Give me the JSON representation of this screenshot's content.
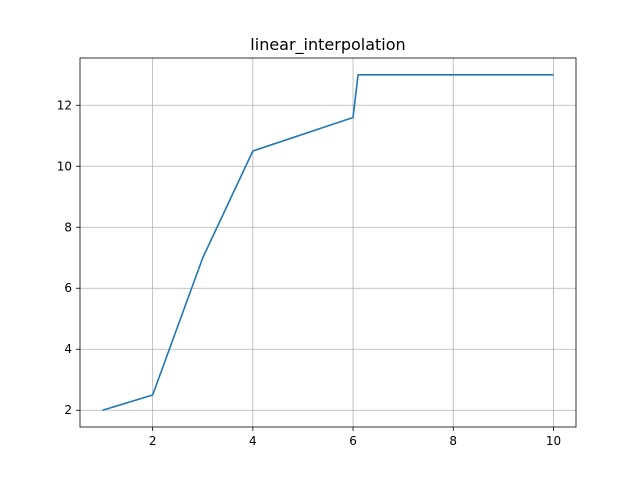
{
  "chart_data": {
    "type": "line",
    "title": "linear_interpolation",
    "xlabel": "",
    "ylabel": "",
    "xlim": [
      0.55,
      10.45
    ],
    "ylim": [
      1.45,
      13.55
    ],
    "xticks": [
      2,
      4,
      6,
      8,
      10
    ],
    "yticks": [
      2,
      4,
      6,
      8,
      10,
      12
    ],
    "grid": true,
    "legend": null,
    "series": [
      {
        "color": "#1f77b4",
        "x": [
          1,
          2,
          3,
          4,
          6,
          6.1,
          7,
          8,
          9,
          10
        ],
        "y": [
          2,
          2.5,
          7,
          10.5,
          11.6,
          13,
          13,
          13,
          13,
          13
        ]
      }
    ]
  }
}
